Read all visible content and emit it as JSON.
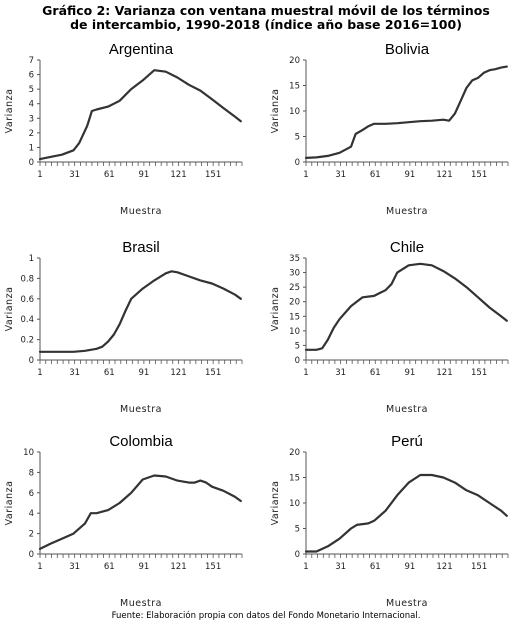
{
  "title_line1": "Gráfico 2: Varianza con ventana muestral móvil de los términos",
  "title_line2": "de intercambio, 1990-2018 (índice año base 2016=100)",
  "source": "Fuente: Elaboración propia con datos del Fondo Monetario Internacional.",
  "colors": {
    "line": "#333333",
    "axis": "#555555"
  },
  "chart_data": [
    {
      "type": "line",
      "title": "Argentina",
      "xlabel": "Muestra",
      "ylabel": "Varianza",
      "xlim": [
        1,
        176
      ],
      "ylim": [
        0,
        7
      ],
      "xticks": [
        "1",
        "31",
        "61",
        "91",
        "121",
        "151"
      ],
      "yticks": [
        "0",
        "1",
        "2",
        "3",
        "4",
        "5",
        "6",
        "7"
      ],
      "series": [
        {
          "x": [
            1,
            10,
            20,
            30,
            35,
            42,
            46,
            50,
            60,
            70,
            80,
            90,
            100,
            110,
            120,
            130,
            140,
            150,
            160,
            170,
            175
          ],
          "y": [
            0.2,
            0.35,
            0.5,
            0.8,
            1.3,
            2.5,
            3.5,
            3.6,
            3.8,
            4.2,
            5.0,
            5.6,
            6.3,
            6.2,
            5.8,
            5.3,
            4.9,
            4.3,
            3.7,
            3.1,
            2.8
          ]
        }
      ]
    },
    {
      "type": "line",
      "title": "Bolivia",
      "xlabel": "Muestra",
      "ylabel": "Varianza",
      "xlim": [
        1,
        176
      ],
      "ylim": [
        0,
        20
      ],
      "xticks": [
        "1",
        "31",
        "61",
        "91",
        "121",
        "151"
      ],
      "yticks": [
        "0",
        "5",
        "10",
        "15",
        "20"
      ],
      "series": [
        {
          "x": [
            1,
            10,
            20,
            30,
            40,
            44,
            50,
            55,
            60,
            70,
            80,
            90,
            100,
            110,
            120,
            125,
            130,
            135,
            140,
            145,
            150,
            155,
            160,
            165,
            170,
            175
          ],
          "y": [
            0.8,
            0.9,
            1.2,
            1.8,
            3.0,
            5.5,
            6.3,
            7.0,
            7.5,
            7.5,
            7.6,
            7.8,
            8.0,
            8.1,
            8.3,
            8.1,
            9.5,
            12.0,
            14.5,
            16.0,
            16.5,
            17.5,
            18.0,
            18.2,
            18.5,
            18.7
          ]
        }
      ]
    },
    {
      "type": "line",
      "title": "Brasil",
      "xlabel": "Muestra",
      "ylabel": "Varianza",
      "xlim": [
        1,
        176
      ],
      "ylim": [
        0,
        1
      ],
      "xticks": [
        "1",
        "31",
        "61",
        "91",
        "121",
        "151"
      ],
      "yticks": [
        "0",
        "0.2",
        "0.4",
        "0.6",
        "0.8",
        "1"
      ],
      "series": [
        {
          "x": [
            1,
            10,
            20,
            30,
            40,
            50,
            55,
            60,
            65,
            70,
            75,
            80,
            90,
            100,
            110,
            115,
            120,
            130,
            140,
            150,
            160,
            170,
            175
          ],
          "y": [
            0.08,
            0.08,
            0.08,
            0.08,
            0.09,
            0.11,
            0.13,
            0.18,
            0.25,
            0.35,
            0.48,
            0.6,
            0.7,
            0.78,
            0.85,
            0.87,
            0.86,
            0.82,
            0.78,
            0.75,
            0.7,
            0.64,
            0.6
          ]
        }
      ]
    },
    {
      "type": "line",
      "title": "Chile",
      "xlabel": "Muestra",
      "ylabel": "Varianza",
      "xlim": [
        1,
        176
      ],
      "ylim": [
        0,
        35
      ],
      "xticks": [
        "1",
        "31",
        "61",
        "91",
        "121",
        "151"
      ],
      "yticks": [
        "0",
        "5",
        "10",
        "15",
        "20",
        "25",
        "30",
        "35"
      ],
      "series": [
        {
          "x": [
            1,
            10,
            15,
            20,
            25,
            30,
            40,
            50,
            60,
            70,
            75,
            80,
            90,
            100,
            110,
            120,
            130,
            140,
            150,
            160,
            170,
            175
          ],
          "y": [
            3.5,
            3.5,
            4.0,
            7.0,
            11.0,
            14.0,
            18.5,
            21.5,
            22.0,
            24.0,
            26.0,
            30.0,
            32.5,
            33.0,
            32.5,
            30.5,
            28.0,
            25.0,
            21.5,
            18.0,
            15.0,
            13.5
          ]
        }
      ]
    },
    {
      "type": "line",
      "title": "Colombia",
      "xlabel": "Muestra",
      "ylabel": "Varianza",
      "xlim": [
        1,
        176
      ],
      "ylim": [
        0,
        10
      ],
      "xticks": [
        "1",
        "31",
        "61",
        "91",
        "121",
        "151"
      ],
      "yticks": [
        "0",
        "2",
        "4",
        "6",
        "8",
        "10"
      ],
      "series": [
        {
          "x": [
            1,
            10,
            20,
            30,
            40,
            45,
            50,
            60,
            70,
            80,
            90,
            100,
            110,
            120,
            130,
            135,
            140,
            145,
            150,
            160,
            170,
            175
          ],
          "y": [
            0.5,
            1.0,
            1.5,
            2.0,
            3.0,
            4.0,
            4.0,
            4.3,
            5.0,
            6.0,
            7.3,
            7.7,
            7.6,
            7.2,
            7.0,
            7.0,
            7.2,
            7.0,
            6.6,
            6.2,
            5.6,
            5.2
          ]
        }
      ]
    },
    {
      "type": "line",
      "title": "Perú",
      "xlabel": "Muestra",
      "ylabel": "Varianza",
      "xlim": [
        1,
        176
      ],
      "ylim": [
        0,
        20
      ],
      "xticks": [
        "1",
        "31",
        "61",
        "91",
        "121",
        "151"
      ],
      "yticks": [
        "0",
        "5",
        "10",
        "15",
        "20"
      ],
      "series": [
        {
          "x": [
            1,
            10,
            15,
            20,
            30,
            40,
            45,
            55,
            60,
            70,
            80,
            90,
            100,
            110,
            120,
            130,
            140,
            150,
            160,
            170,
            175
          ],
          "y": [
            0.5,
            0.5,
            1.0,
            1.5,
            3.0,
            5.0,
            5.7,
            6.0,
            6.5,
            8.5,
            11.5,
            14.0,
            15.5,
            15.5,
            15.0,
            14.0,
            12.5,
            11.5,
            10.0,
            8.5,
            7.5
          ]
        }
      ]
    }
  ]
}
